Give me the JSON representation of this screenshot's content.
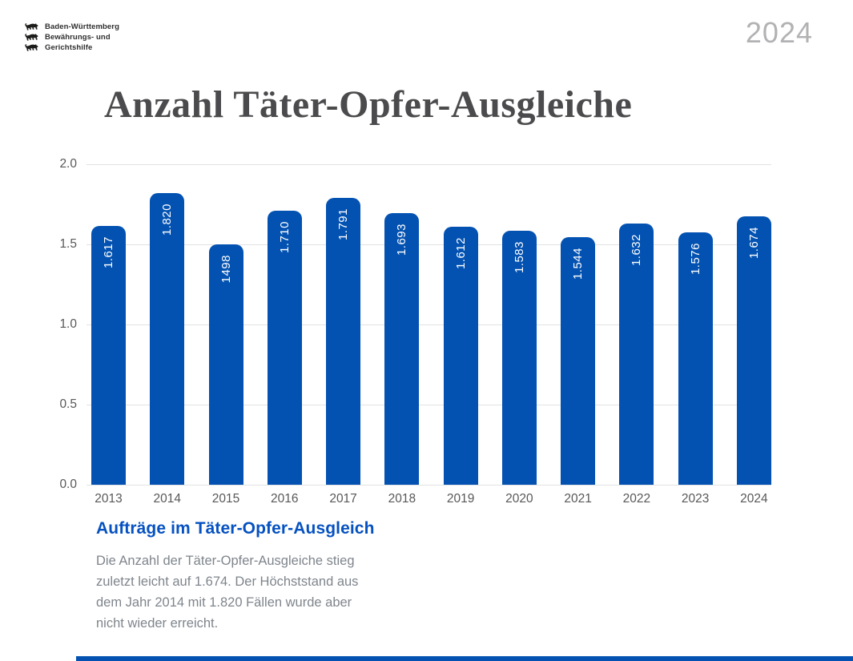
{
  "header": {
    "logo": {
      "lines": [
        "Baden-Württemberg",
        "Bewährungs- und",
        "Gerichtshilfe"
      ],
      "icon": "bw-lion-icon"
    },
    "year_badge": "2024"
  },
  "title": "Anzahl Täter-Opfer-Ausgleiche",
  "chart_data": {
    "type": "bar",
    "title": "Anzahl Täter-Opfer-Ausgleiche",
    "categories": [
      "2013",
      "2014",
      "2015",
      "2016",
      "2017",
      "2018",
      "2019",
      "2020",
      "2021",
      "2022",
      "2023",
      "2024"
    ],
    "values": [
      1617,
      1820,
      1498,
      1710,
      1791,
      1693,
      1612,
      1583,
      1544,
      1632,
      1576,
      1674
    ],
    "bar_labels": [
      "1.617",
      "1.820",
      "1498",
      "1.710",
      "1.791",
      "1.693",
      "1.612",
      "1.583",
      "1.544",
      "1.632",
      "1.576",
      "1.674"
    ],
    "xlabel": "",
    "ylabel": "",
    "y_ticks": [
      "2.0",
      "1.5",
      "1.0",
      "0.5",
      "0.0"
    ],
    "ylim": [
      0,
      2000
    ],
    "grid": true,
    "legend": false,
    "bar_color": "#0352b1",
    "bar_label_color": "#ffffff"
  },
  "footer": {
    "heading": "Aufträge im Täter-Opfer-Ausgleich",
    "description": "Die Anzahl der Täter-Opfer-Ausgleiche stieg zuletzt leicht auf 1.674. Der Höchststand aus dem Jahr 2014 mit 1.820 Fällen wurde aber nicht wieder erreicht."
  },
  "colors": {
    "brand_blue": "#0352b1",
    "heading_blue": "#0551c1",
    "title_gray": "#4b4b4d",
    "axis_gray": "#58585a",
    "desc_gray": "#7f858c",
    "year_badge_gray": "#b2b2b5",
    "grid_gray": "#e2e2e2"
  }
}
